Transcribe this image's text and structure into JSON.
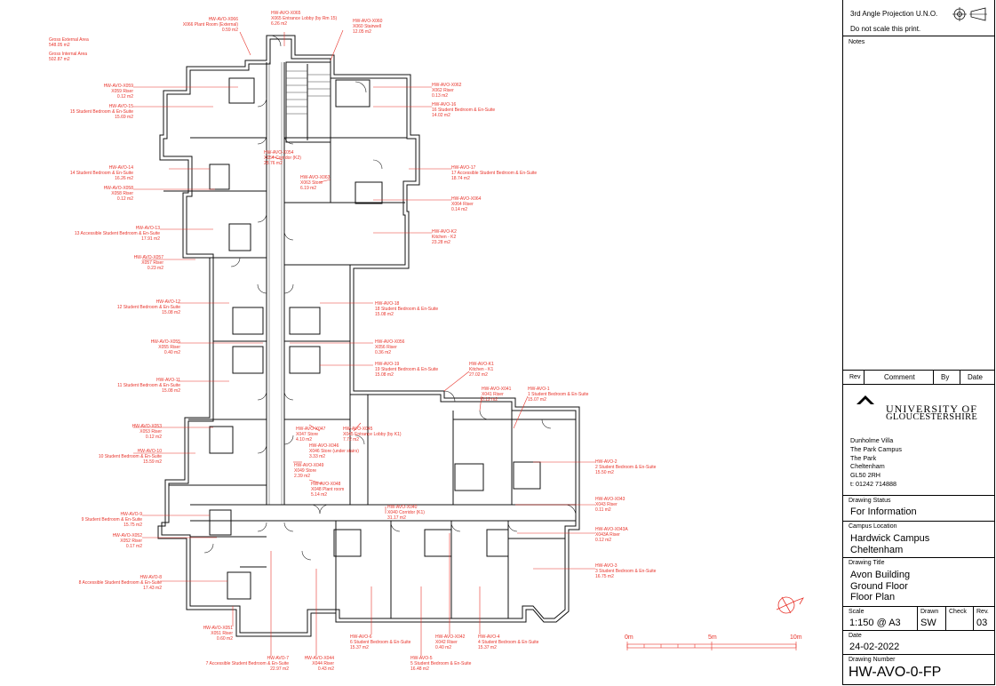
{
  "plan": {
    "area_summary": {
      "gross_external_label": "Gross External Area",
      "gross_external_value": "548.05 m2",
      "gross_internal_label": "Gross Internal Area",
      "gross_internal_value": "502.87 m2"
    },
    "room_labels": [
      {
        "id": "HW-AVO-X066",
        "name": "X066 Plant Room (External)",
        "area": "0.59 m2"
      },
      {
        "id": "HW-AVO-X065",
        "name": "X065 Entrance Lobby (by Rm 15)",
        "area": "6.26 m2"
      },
      {
        "id": "HW-AVO-X060",
        "name": "X060 Stairwell",
        "area": "12.05 m2"
      },
      {
        "id": "HW-AVO-X059",
        "name": "X059 Riser",
        "area": "0.12 m2"
      },
      {
        "id": "HW-AVO-15",
        "name": "15 Student Bedroom & En-Suite",
        "area": "15.69 m2"
      },
      {
        "id": "HW-AVO-X062",
        "name": "X062 Riser",
        "area": "0.13 m2"
      },
      {
        "id": "HW-AVO-16",
        "name": "16 Student Bedroom & En-Suite",
        "area": "14.02 m2"
      },
      {
        "id": "HW-AVO-X054",
        "name": "X054 Corridor (K2)",
        "area": "28.76 m2"
      },
      {
        "id": "HW-AVO-14",
        "name": "14 Student Bedroom & En-Suite",
        "area": "16.26 m2"
      },
      {
        "id": "HW-AVO-X058",
        "name": "X058 Riser",
        "area": "0.12 m2"
      },
      {
        "id": "HW-AVO-X063",
        "name": "X063 Store",
        "area": "6.19 m2"
      },
      {
        "id": "HW-AVO-17",
        "name": "17 Accessible Student Bedroom & En-Suite",
        "area": "18.74 m2"
      },
      {
        "id": "HW-AVO-X064",
        "name": "X064 Riser",
        "area": "0.14 m2"
      },
      {
        "id": "HW-AVO-13",
        "name": "13 Accessible Student Bedroom & En-Suite",
        "area": "17.91 m2"
      },
      {
        "id": "HW-AVO-K2",
        "name": "Kitchen - K2",
        "area": "23.28 m2"
      },
      {
        "id": "HW-AVO-X057",
        "name": "X057 Riser",
        "area": "0.23 m2"
      },
      {
        "id": "HW-AVO-12",
        "name": "12 Student Bedroom & En-Suite",
        "area": "15.08 m2"
      },
      {
        "id": "HW-AVO-18",
        "name": "18 Student Bedroom & En-Suite",
        "area": "15.08 m2"
      },
      {
        "id": "HW-AVO-X055",
        "name": "X055 Riser",
        "area": "0.40 m2"
      },
      {
        "id": "HW-AVO-X056",
        "name": "X056 Riser",
        "area": "0.36 m2"
      },
      {
        "id": "HW-AVO-19",
        "name": "19 Student Bedroom & En-Suite",
        "area": "15.08 m2"
      },
      {
        "id": "HW-AVO-11",
        "name": "11 Student Bedroom & En-Suite",
        "area": "15.08 m2"
      },
      {
        "id": "HW-AVO-K1",
        "name": "Kitchen - K1",
        "area": "27.02 m2"
      },
      {
        "id": "HW-AVO-X041",
        "name": "X041 Riser",
        "area": "0.12 m2"
      },
      {
        "id": "HW-AVO-1",
        "name": "1 Student Bedroom & En-Suite",
        "area": "15.07 m2"
      },
      {
        "id": "HW-AVO-X053",
        "name": "X053 Riser",
        "area": "0.12 m2"
      },
      {
        "id": "HW-AVO-X047",
        "name": "X047 Store",
        "area": "4.10 m2"
      },
      {
        "id": "HW-AVO-X045",
        "name": "X045 Entrance Lobby (by K1)",
        "area": "7.72 m2"
      },
      {
        "id": "HW-AVO-10",
        "name": "10 Student Bedroom & En-Suite",
        "area": "15.59 m2"
      },
      {
        "id": "HW-AVO-X046",
        "name": "X046 Store (under stairs)",
        "area": "3.33 m2"
      },
      {
        "id": "HW-AVO-X049",
        "name": "X049 Store",
        "area": "2.39 m2"
      },
      {
        "id": "HW-AVO-X048",
        "name": "X048 Plant room",
        "area": "5.14 m2"
      },
      {
        "id": "HW-AVO-2",
        "name": "2 Student Bedroom & En-Suite",
        "area": "15.50 m2"
      },
      {
        "id": "HW-AVO-9",
        "name": "9 Student Bedroom & En-Suite",
        "area": "15.75 m2"
      },
      {
        "id": "HW-AVO-X043",
        "name": "X043 Riser",
        "area": "0.11 m2"
      },
      {
        "id": "HW-AVO-X040",
        "name": "X040 Corridor (K1)",
        "area": "31.17 m2"
      },
      {
        "id": "HW-AVO-X052",
        "name": "X052 Riser",
        "area": "0.17 m2"
      },
      {
        "id": "HW-AVO-X043A",
        "name": "X043A Riser",
        "area": "0.12 m2"
      },
      {
        "id": "HW-AVO-8",
        "name": "8 Accessible Student Bedroom & En-Suite",
        "area": "17.43 m2"
      },
      {
        "id": "HW-AVO-3",
        "name": "3 Student Bedroom & En-Suite",
        "area": "16.75 m2"
      },
      {
        "id": "HW-AVO-X051",
        "name": "X051 Riser",
        "area": "0.60 m2"
      },
      {
        "id": "HW-AVO-6",
        "name": "6 Student Bedroom & En-Suite",
        "area": "15.37 m2"
      },
      {
        "id": "HW-AVO-X042",
        "name": "X042 Riser",
        "area": "0.40 m2"
      },
      {
        "id": "HW-AVO-4",
        "name": "4 Student Bedroom & En-Suite",
        "area": "15.37 m2"
      },
      {
        "id": "HW-AVO-7",
        "name": "7 Accessible Student Bedroom & En-Suite",
        "area": "22.97 m2"
      },
      {
        "id": "HW-AVO-X044",
        "name": "X044 Riser",
        "area": "0.43 m2"
      },
      {
        "id": "HW-AVO-5",
        "name": "5 Student Bedroom & En-Suite",
        "area": "16.48 m2"
      }
    ],
    "scale_bar": {
      "start": "0m",
      "mid": "5m",
      "end": "10m"
    }
  },
  "title_block": {
    "projection": "3rd Angle Projection U.N.O.",
    "do_not_scale": "Do not scale this print.",
    "notes_label": "Notes",
    "revision_headers": {
      "rev": "Rev",
      "comment": "Comment",
      "by": "By",
      "date": "Date"
    },
    "logo": {
      "line1": "UNIVERSITY OF",
      "line2": "GLOUCESTERSHIRE"
    },
    "address": [
      "Dunholme Villa",
      "The Park Campus",
      "The Park",
      "Cheltenham",
      "GL50 2RH",
      "t: 01242 714888"
    ],
    "drawing_status_label": "Drawing Status",
    "drawing_status": "For Information",
    "campus_location_label": "Campus Location",
    "campus_location": [
      "Hardwick Campus",
      "Cheltenham"
    ],
    "drawing_title_label": "Drawing Title",
    "drawing_title": [
      "Avon Building",
      "Ground Floor",
      "Floor Plan"
    ],
    "scale_label": "Scale",
    "scale": "1:150 @ A3",
    "drawn_label": "Drawn",
    "drawn": "SW",
    "check_label": "Check",
    "check": "",
    "rev_label": "Rev.",
    "rev": "03",
    "date_label": "Date",
    "date": "24-02-2022",
    "drawing_number_label": "Drawing Number",
    "drawing_number": "HW-AVO-0-FP"
  },
  "colors": {
    "annotation": "#e8332a",
    "linework": "#000000"
  }
}
